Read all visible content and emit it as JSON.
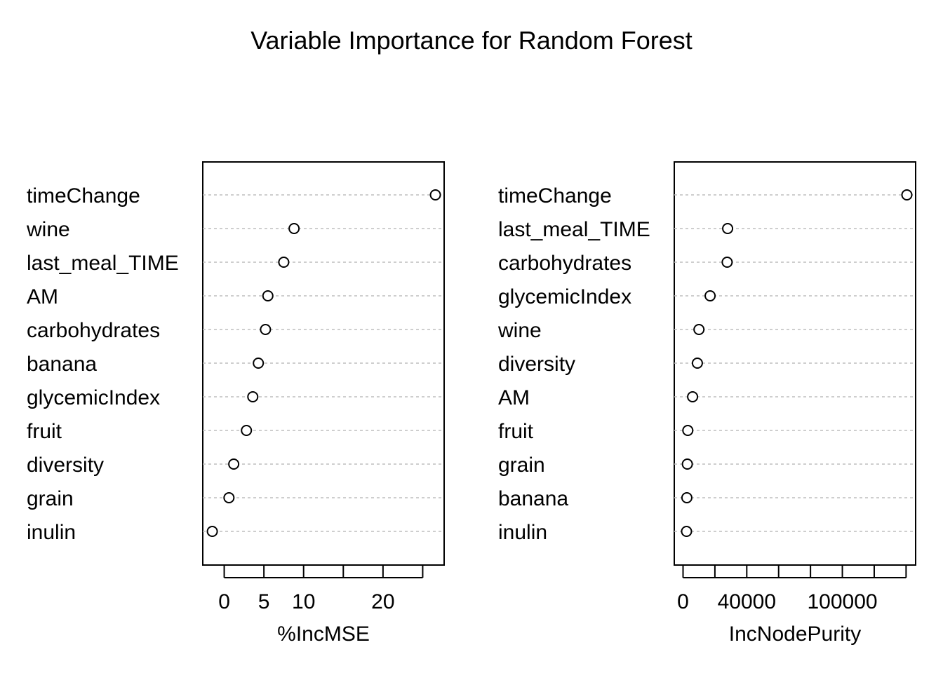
{
  "chart_data": {
    "type": "scatter",
    "title": "Variable Importance for Random Forest",
    "panels": [
      {
        "xlabel": "%IncMSE",
        "xlim": [
          -2.7,
          27.7
        ],
        "xticks": [
          0,
          5,
          10,
          15,
          20,
          25
        ],
        "xtick_labels": [
          "0",
          "5",
          "10",
          "",
          "20",
          ""
        ],
        "categories": [
          "timeChange",
          "wine",
          "last_meal_TIME",
          "AM",
          "carbohydrates",
          "banana",
          "glycemicIndex",
          "fruit",
          "diversity",
          "grain",
          "inulin"
        ],
        "values": [
          26.6,
          8.8,
          7.5,
          5.5,
          5.2,
          4.3,
          3.6,
          2.8,
          1.2,
          0.6,
          -1.5
        ],
        "grid": true
      },
      {
        "xlabel": "IncNodePurity",
        "xlim": [
          -5500,
          146000
        ],
        "xticks": [
          0,
          20000,
          40000,
          60000,
          80000,
          100000,
          120000,
          140000
        ],
        "xtick_labels": [
          "0",
          "",
          "40000",
          "",
          "",
          "100000",
          "",
          ""
        ],
        "categories": [
          "timeChange",
          "last_meal_TIME",
          "carbohydrates",
          "glycemicIndex",
          "wine",
          "diversity",
          "AM",
          "fruit",
          "grain",
          "banana",
          "inulin"
        ],
        "values": [
          140500,
          28000,
          27700,
          17000,
          10000,
          9000,
          6000,
          3000,
          2700,
          2400,
          2200
        ],
        "grid": true
      }
    ]
  }
}
